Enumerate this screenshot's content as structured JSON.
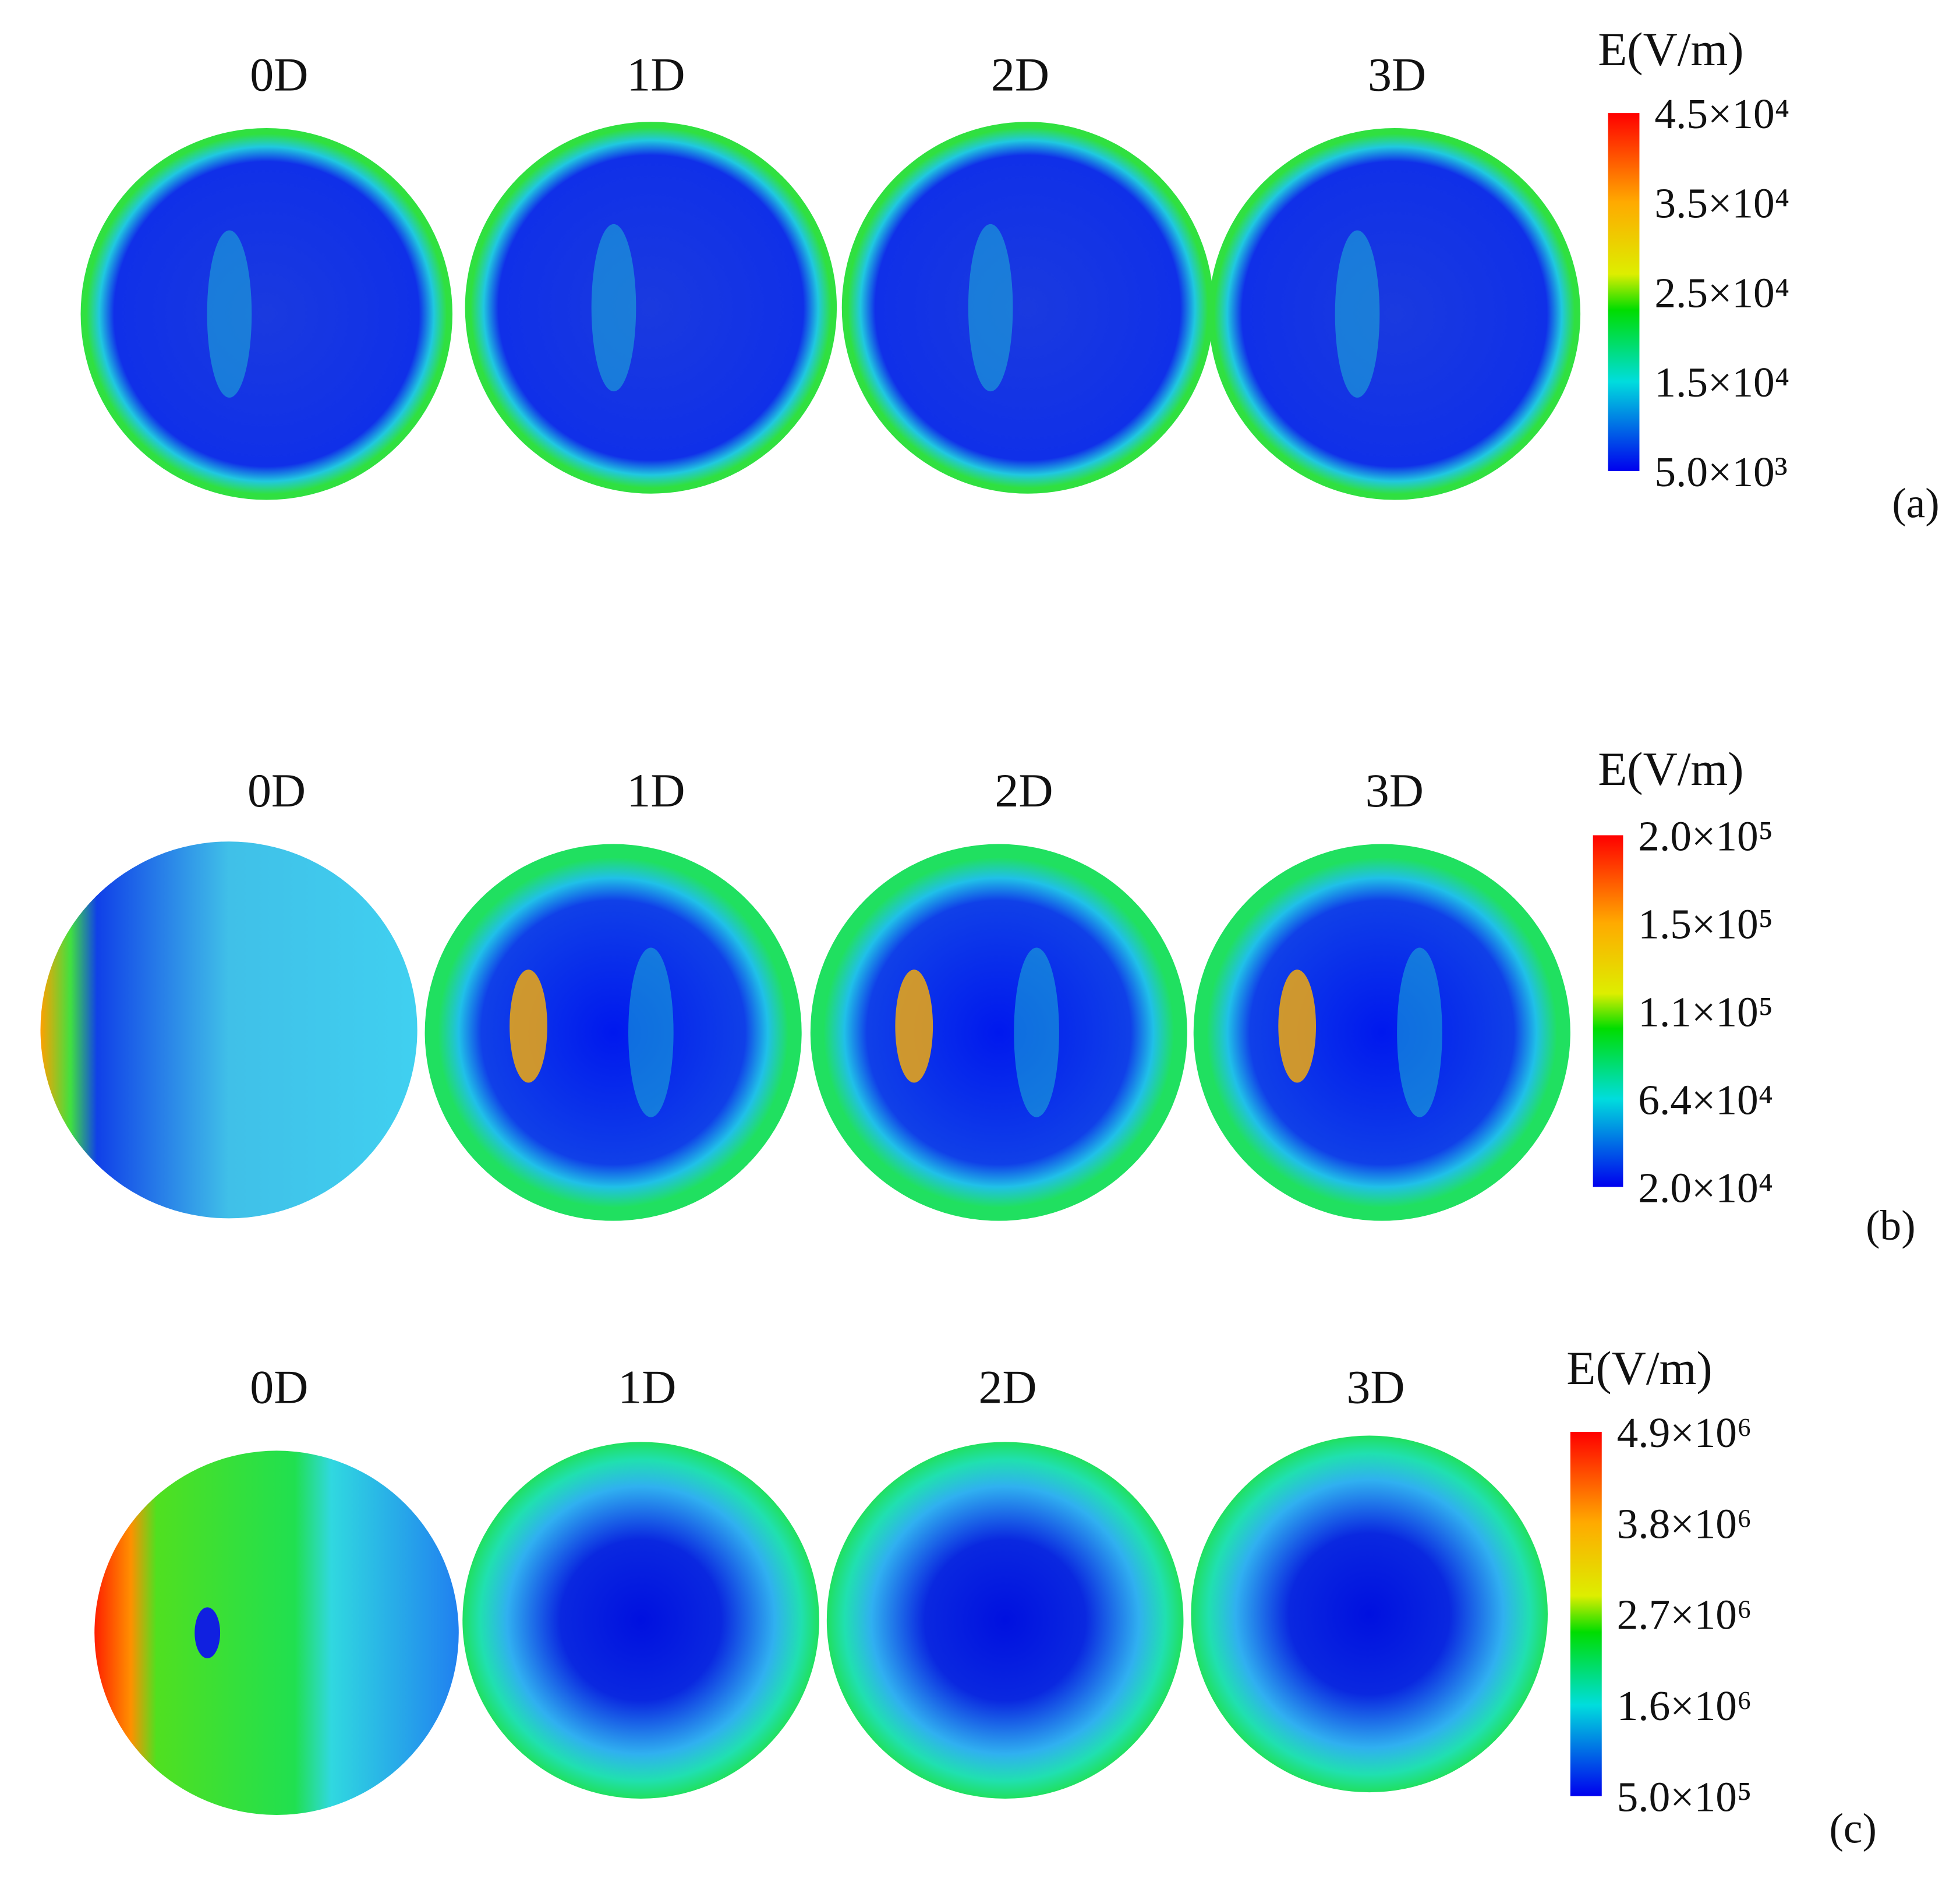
{
  "panels": [
    {
      "label": "(a)",
      "cases": [
        "0D",
        "1D",
        "2D",
        "3D"
      ],
      "colorbar": {
        "title": "E(V/m)",
        "ticks": [
          "4.5×10⁴",
          "3.5×10⁴",
          "2.5×10⁴",
          "1.5×10⁴",
          "5.0×10³"
        ]
      }
    },
    {
      "label": "(b)",
      "cases": [
        "0D",
        "1D",
        "2D",
        "3D"
      ],
      "colorbar": {
        "title": "E(V/m)",
        "ticks": [
          "2.0×10⁵",
          "1.5×10⁵",
          "1.1×10⁵",
          "6.4×10⁴",
          "2.0×10⁴"
        ]
      }
    },
    {
      "label": "(c)",
      "cases": [
        "0D",
        "1D",
        "2D",
        "3D"
      ],
      "colorbar": {
        "title": "E(V/m)",
        "ticks": [
          "4.9×10⁶",
          "3.8×10⁶",
          "2.7×10⁶",
          "1.6×10⁶",
          "5.0×10⁵"
        ]
      }
    }
  ]
}
